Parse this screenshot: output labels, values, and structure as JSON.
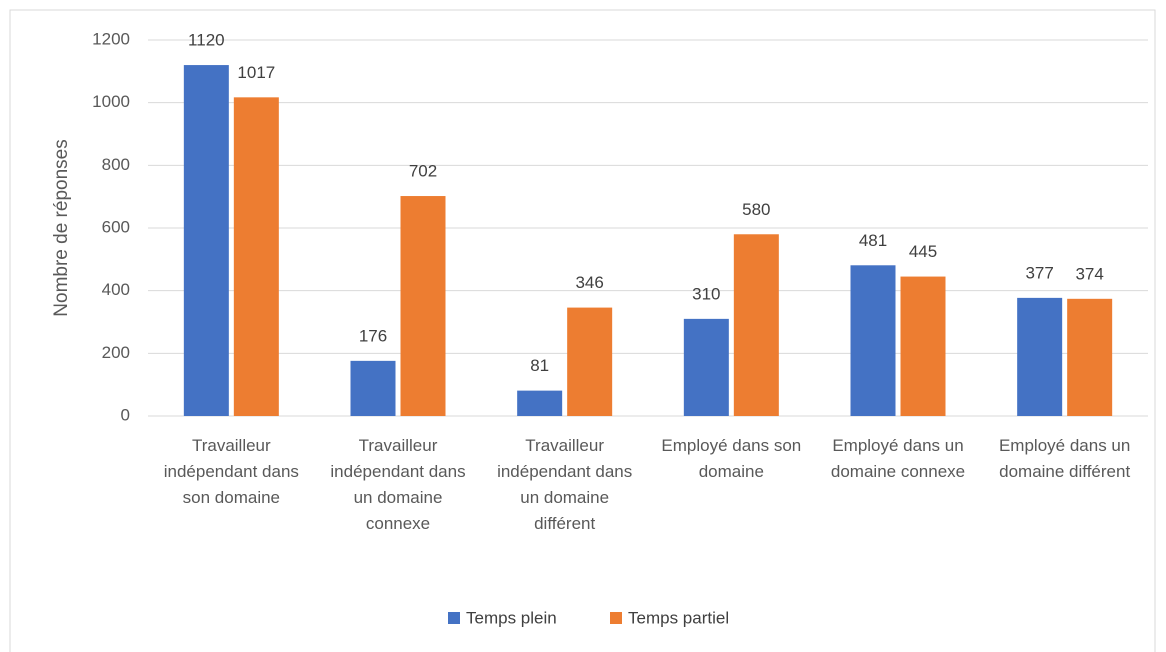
{
  "chart_data": {
    "type": "bar",
    "y_label": "Nombre de réponses",
    "categories": [
      "Travailleur indépendant dans son domaine",
      "Travailleur indépendant dans un domaine connexe",
      "Travailleur indépendant dans un domaine différent",
      "Employé dans son domaine",
      "Employé dans un domaine connexe",
      "Employé dans un domaine différent"
    ],
    "series": [
      {
        "name": "Temps plein",
        "color": "#4472c4",
        "values": [
          1120,
          176,
          81,
          310,
          481,
          377
        ]
      },
      {
        "name": "Temps partiel",
        "color": "#ed7d31",
        "values": [
          1017,
          702,
          346,
          580,
          445,
          374
        ]
      }
    ],
    "ylim": [
      0,
      1200
    ],
    "yticks": [
      0,
      200,
      400,
      600,
      800,
      1000,
      1200
    ],
    "grid": true,
    "legend": "bottom"
  }
}
